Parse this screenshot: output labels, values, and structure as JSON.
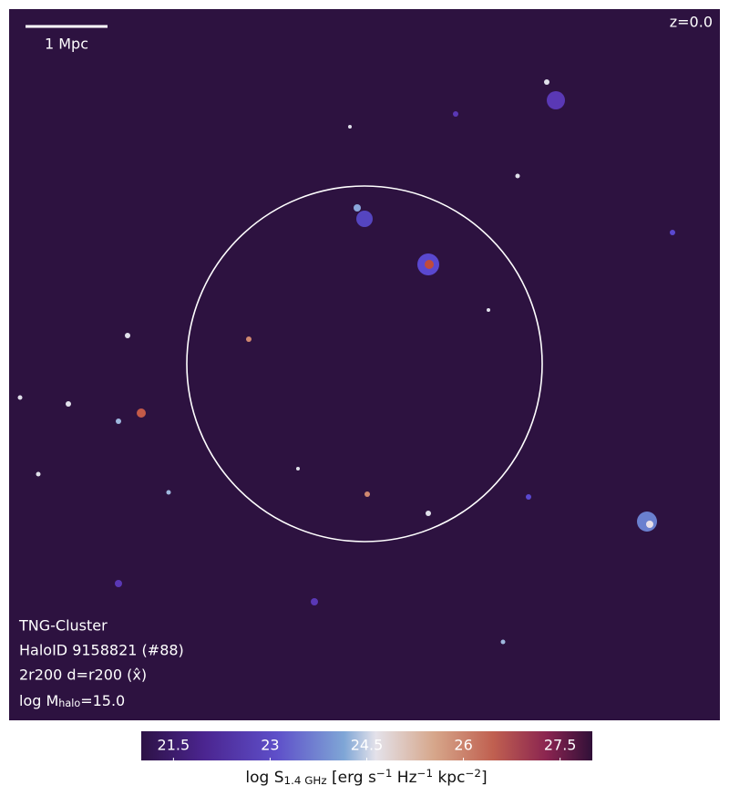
{
  "image": {
    "redshift": "z=0.0",
    "scale_bar": "1 Mpc",
    "info": [
      "TNG-Cluster",
      "HaloID 9158821 (#88)",
      "2r200 d=r200 (x̂)"
    ],
    "mass_label": [
      {
        "text": "log M"
      },
      {
        "text": "halo",
        "sub": true
      },
      {
        "text": "=15.0"
      }
    ]
  },
  "colorbar": {
    "lim": [
      21.0,
      28.0
    ],
    "ticks": [
      21.5,
      23.0,
      24.5,
      26.0,
      27.5
    ],
    "label": [
      {
        "text": "log S"
      },
      {
        "text": "1.4 GHz",
        "sub": true
      },
      {
        "text": " [erg s"
      },
      {
        "text": "−1",
        "sup": true
      },
      {
        "text": " Hz"
      },
      {
        "text": "−1",
        "sup": true
      },
      {
        "text": " kpc"
      },
      {
        "text": "−2",
        "sup": true
      },
      {
        "text": "]"
      }
    ]
  }
}
